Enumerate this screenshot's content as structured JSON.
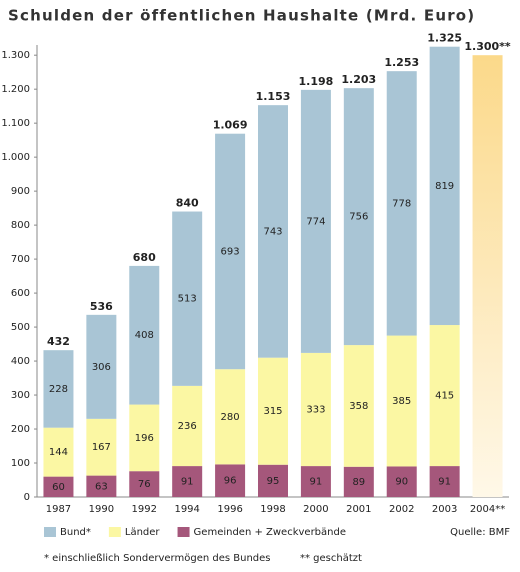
{
  "chart_data": {
    "type": "stacked_bar",
    "title": "Schulden der öffentlichen Haushalte (Mrd. Euro)",
    "categories": [
      "1987",
      "1990",
      "1992",
      "1994",
      "1996",
      "1998",
      "2000",
      "2001",
      "2002",
      "2003",
      "2004**"
    ],
    "series": [
      {
        "name": "Gemeinden + Zweckverbände",
        "color": "#a5577b",
        "values": [
          60,
          63,
          76,
          91,
          96,
          95,
          91,
          89,
          90,
          91,
          null
        ]
      },
      {
        "name": "Länder",
        "color": "#fbf7a3",
        "values": [
          144,
          167,
          196,
          236,
          280,
          315,
          333,
          358,
          385,
          415,
          null
        ]
      },
      {
        "name": "Bund*",
        "color": "#a9c5d5",
        "values": [
          228,
          306,
          408,
          513,
          693,
          743,
          774,
          756,
          778,
          819,
          null
        ]
      }
    ],
    "totals": {
      "values": [
        432,
        536,
        680,
        840,
        1069,
        1153,
        1198,
        1203,
        1253,
        1325,
        1300
      ],
      "value_labels": [
        "432",
        "536",
        "680",
        "840",
        "1.069",
        "1.153",
        "1.198",
        "1.203",
        "1.253",
        "1.325",
        "1.300**"
      ],
      "estimate_color": "#fbd98a"
    },
    "ylim": [
      0,
      1330
    ],
    "yticks": [
      0,
      100,
      200,
      300,
      400,
      500,
      600,
      700,
      800,
      900,
      {
        "value": 1000,
        "label": "1.000"
      },
      {
        "value": 1100,
        "label": "1.100"
      },
      {
        "value": 1200,
        "label": "1.200"
      },
      {
        "value": 1300,
        "label": "1.300"
      }
    ],
    "legend_order": [
      2,
      1,
      0
    ],
    "source": "Quelle: BMF",
    "footnotes": [
      "* einschließlich Sondervermögen des Bundes",
      "** geschätzt"
    ]
  }
}
